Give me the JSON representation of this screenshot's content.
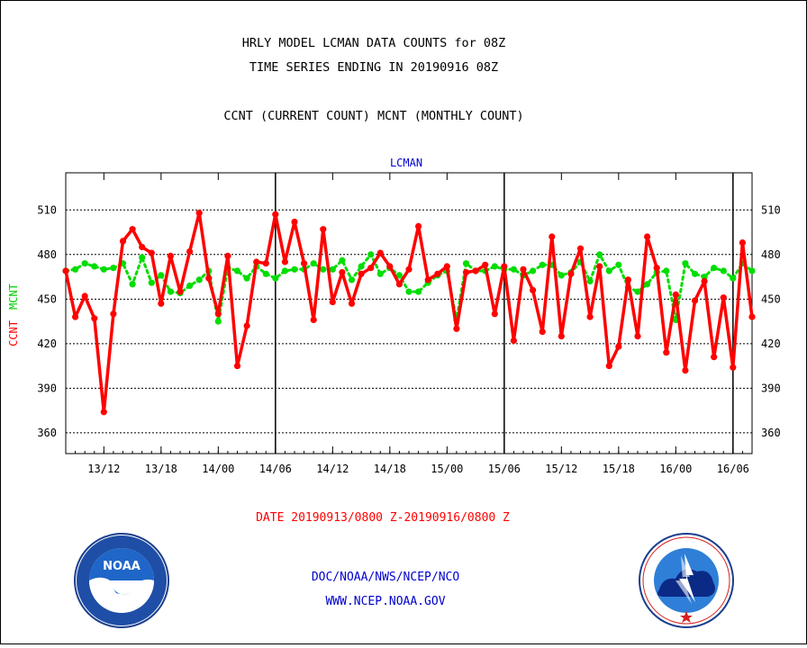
{
  "header": {
    "title_line1": "HRLY MODEL LCMAN DATA COUNTS for 08Z",
    "title_line2": "TIME SERIES ENDING IN 20190916 08Z",
    "subtitle": "CCNT (CURRENT COUNT) MCNT (MONTHLY COUNT)"
  },
  "footer": {
    "org": "DOC/NOAA/NWS/NCEP/NCO",
    "url": "WWW.NCEP.NOAA.GOV",
    "noaa_logo_text": "NOAA"
  },
  "colors": {
    "ccnt": "#ff0000",
    "mcnt": "#00dd00",
    "label_blue": "#0000cc"
  },
  "chart_data": {
    "type": "line",
    "plot_label": "LCMAN",
    "ylabel_ccnt": "CCNT",
    "ylabel_mcnt": "MCNT",
    "xlabel": "DATE 20190913/0800 Z-20190916/0800 Z",
    "ylim": [
      346,
      535
    ],
    "yticks": [
      360,
      390,
      420,
      450,
      480,
      510
    ],
    "grid": true,
    "x_unit": "hours since 20190913/08Z",
    "xlim": [
      0,
      72
    ],
    "xticks": [
      {
        "x": 4,
        "label": "13/12"
      },
      {
        "x": 10,
        "label": "13/18"
      },
      {
        "x": 16,
        "label": "14/00"
      },
      {
        "x": 22,
        "label": "14/06"
      },
      {
        "x": 28,
        "label": "14/12"
      },
      {
        "x": 34,
        "label": "14/18"
      },
      {
        "x": 40,
        "label": "15/00"
      },
      {
        "x": 46,
        "label": "15/06"
      },
      {
        "x": 52,
        "label": "15/12"
      },
      {
        "x": 58,
        "label": "15/18"
      },
      {
        "x": 64,
        "label": "16/00"
      },
      {
        "x": 70,
        "label": "16/06"
      }
    ],
    "day_dividers": [
      22,
      46,
      70
    ],
    "series": [
      {
        "name": "MCNT",
        "color": "#00dd00",
        "style": "dotted",
        "values": [
          469,
          470,
          474,
          472,
          470,
          471,
          474,
          460,
          478,
          461,
          466,
          455,
          454,
          459,
          463,
          469,
          435,
          471,
          469,
          464,
          472,
          467,
          464,
          469,
          470,
          470,
          474,
          470,
          470,
          476,
          463,
          472,
          480,
          467,
          471,
          466,
          455,
          455,
          461,
          466,
          469,
          436,
          474,
          469,
          469,
          472,
          470,
          470,
          466,
          469,
          473,
          473,
          466,
          468,
          475,
          462,
          480,
          469,
          473,
          458,
          455,
          460,
          468,
          469,
          436,
          474,
          467,
          465,
          471,
          469,
          464,
          474,
          469
        ]
      },
      {
        "name": "CCNT",
        "color": "#ff0000",
        "style": "solid",
        "values": [
          469,
          438,
          452,
          437,
          374,
          440,
          489,
          497,
          485,
          481,
          447,
          479,
          455,
          482,
          508,
          464,
          440,
          479,
          405,
          432,
          475,
          474,
          507,
          475,
          502,
          474,
          436,
          497,
          448,
          468,
          447,
          467,
          471,
          481,
          472,
          460,
          470,
          499,
          463,
          467,
          472,
          430,
          468,
          469,
          473,
          440,
          472,
          422,
          470,
          456,
          428,
          492,
          425,
          467,
          484,
          438,
          472,
          405,
          418,
          463,
          425,
          492,
          471,
          414,
          453,
          402,
          449,
          462,
          411,
          451,
          404,
          488,
          438
        ]
      }
    ]
  }
}
